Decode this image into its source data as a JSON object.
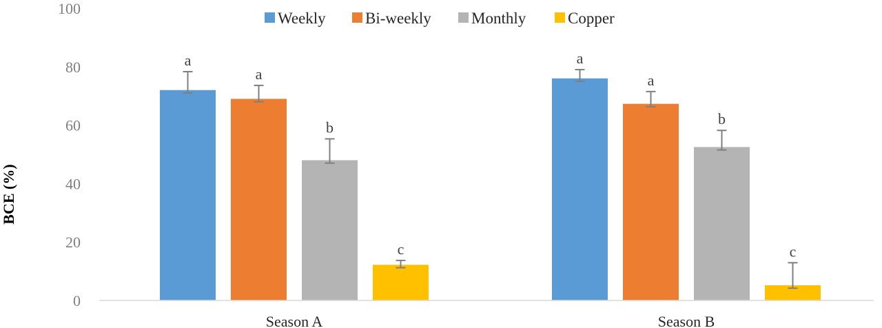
{
  "chart_data": {
    "type": "bar",
    "title": "",
    "xlabel": "",
    "ylabel": "BCE (%)",
    "ylim": [
      0,
      100
    ],
    "yticks": [
      "0",
      "20",
      "40",
      "60",
      "80",
      "100"
    ],
    "categories": [
      "Season A",
      "Season B"
    ],
    "grid": false,
    "legend_position": "top-center",
    "series": [
      {
        "name": "Weekly",
        "color": "#5b9bd5",
        "values": [
          72,
          76
        ],
        "error_plus": [
          6.3,
          3.0
        ],
        "error_minus": [
          1.0,
          1.0
        ],
        "letters": [
          "a",
          "a"
        ]
      },
      {
        "name": "Bi-weekly",
        "color": "#ed7d31",
        "values": [
          69,
          67.3
        ],
        "error_plus": [
          4.6,
          4.2
        ],
        "error_minus": [
          1.0,
          1.0
        ],
        "letters": [
          "a",
          "a"
        ]
      },
      {
        "name": "Monthly",
        "color": "#b4b4b4",
        "values": [
          48,
          52.5
        ],
        "error_plus": [
          7.3,
          5.7
        ],
        "error_minus": [
          1.0,
          1.0
        ],
        "letters": [
          "b",
          "b"
        ]
      },
      {
        "name": "Copper",
        "color": "#ffc000",
        "values": [
          12.2,
          5.2
        ],
        "error_plus": [
          1.5,
          7.7
        ],
        "error_minus": [
          1.0,
          1.0
        ],
        "letters": [
          "c",
          "c"
        ]
      }
    ]
  }
}
